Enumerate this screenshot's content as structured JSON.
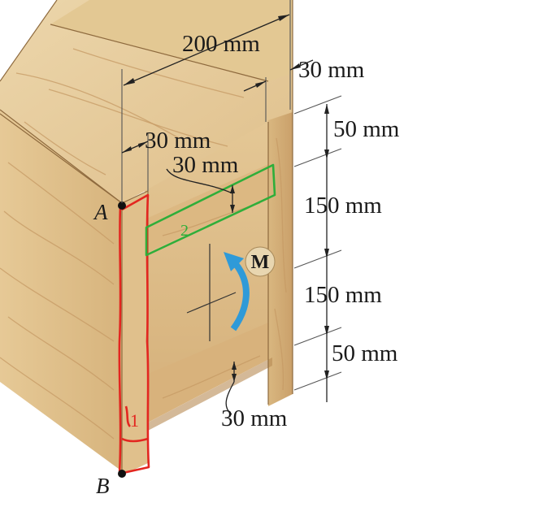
{
  "figure": {
    "dimensions": {
      "top_width": "200 mm",
      "right_thickness": "30 mm",
      "left_web": "30 mm",
      "flange_thickness": "30 mm",
      "top_height": "50 mm",
      "upper_mid": "150 mm",
      "lower_mid": "150 mm",
      "bottom_height": "50 mm",
      "bottom_flange": "30 mm"
    },
    "points": {
      "a": "A",
      "b": "B"
    },
    "moment": "M",
    "annotations": {
      "red_region": "1",
      "green_region": "2"
    },
    "colors": {
      "wood_light": "#e9d2a4",
      "wood_mid": "#dcb983",
      "wood_dark": "#c99d63",
      "wood_shadow": "#b98c55",
      "red_markup": "#e32620",
      "green_markup": "#2fae3a",
      "moment_arrow": "#2f9ad8",
      "moment_badge": "#e8d6b0"
    }
  }
}
